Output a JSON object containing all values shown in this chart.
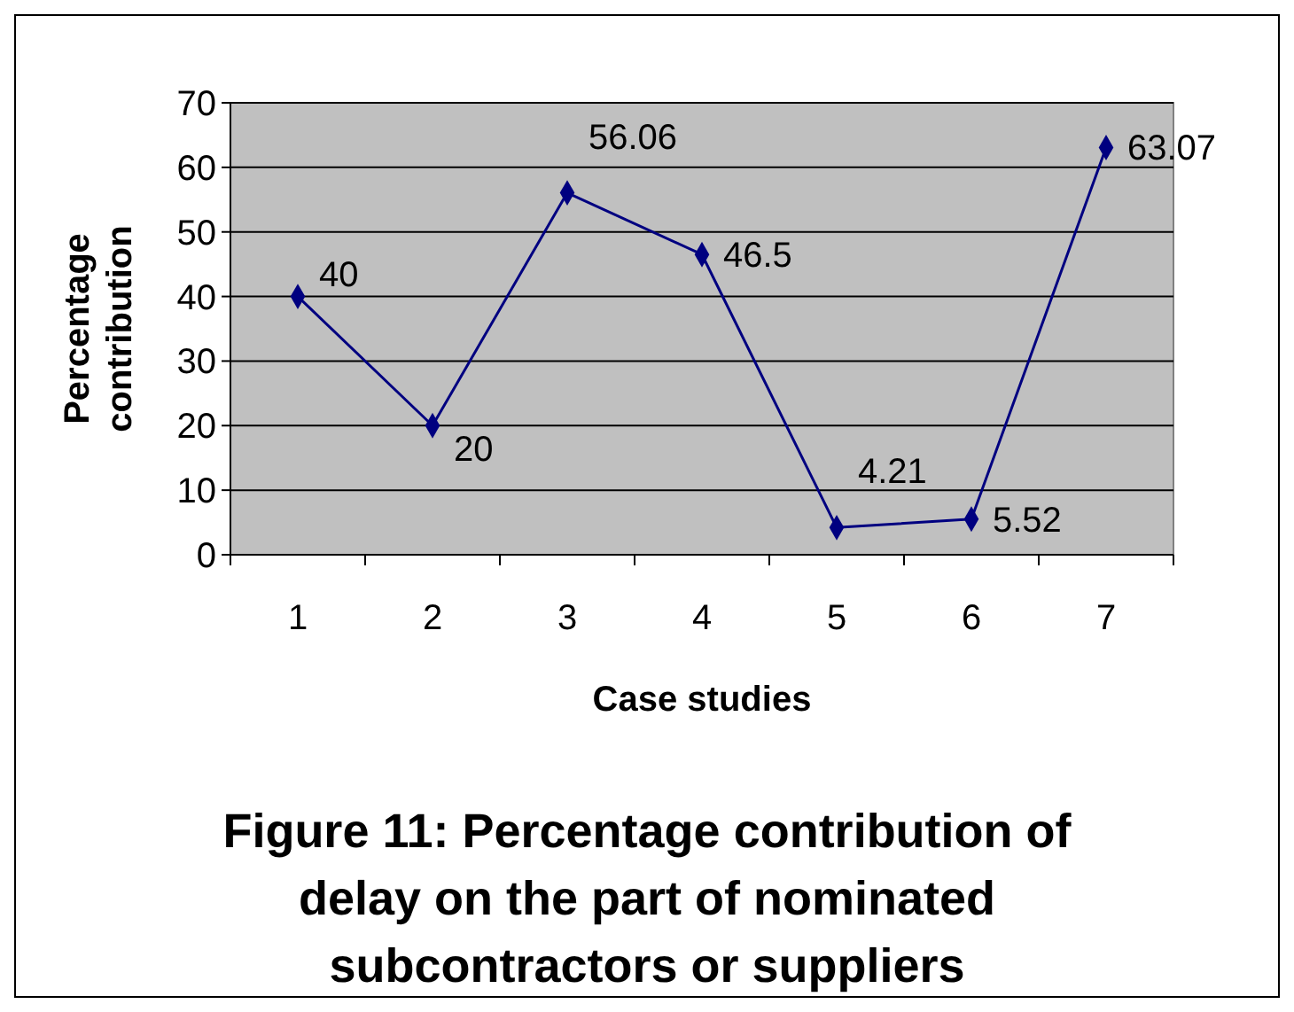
{
  "chart_data": {
    "type": "line",
    "title": "Figure 11: Percentage contribution of delay on the part of nominated subcontractors or suppliers",
    "xlabel": "Case studies",
    "ylabel": "Percentage contribution",
    "categories": [
      "1",
      "2",
      "3",
      "4",
      "5",
      "6",
      "7"
    ],
    "series": [
      {
        "color": "#000080",
        "values": [
          40,
          20,
          56.06,
          46.5,
          4.21,
          5.52,
          63.07
        ]
      }
    ],
    "ylim": [
      0,
      70
    ],
    "yticks": [
      0,
      10,
      20,
      30,
      40,
      50,
      60,
      70
    ],
    "grid": "y",
    "marker": "diamond",
    "data_labels": true
  }
}
